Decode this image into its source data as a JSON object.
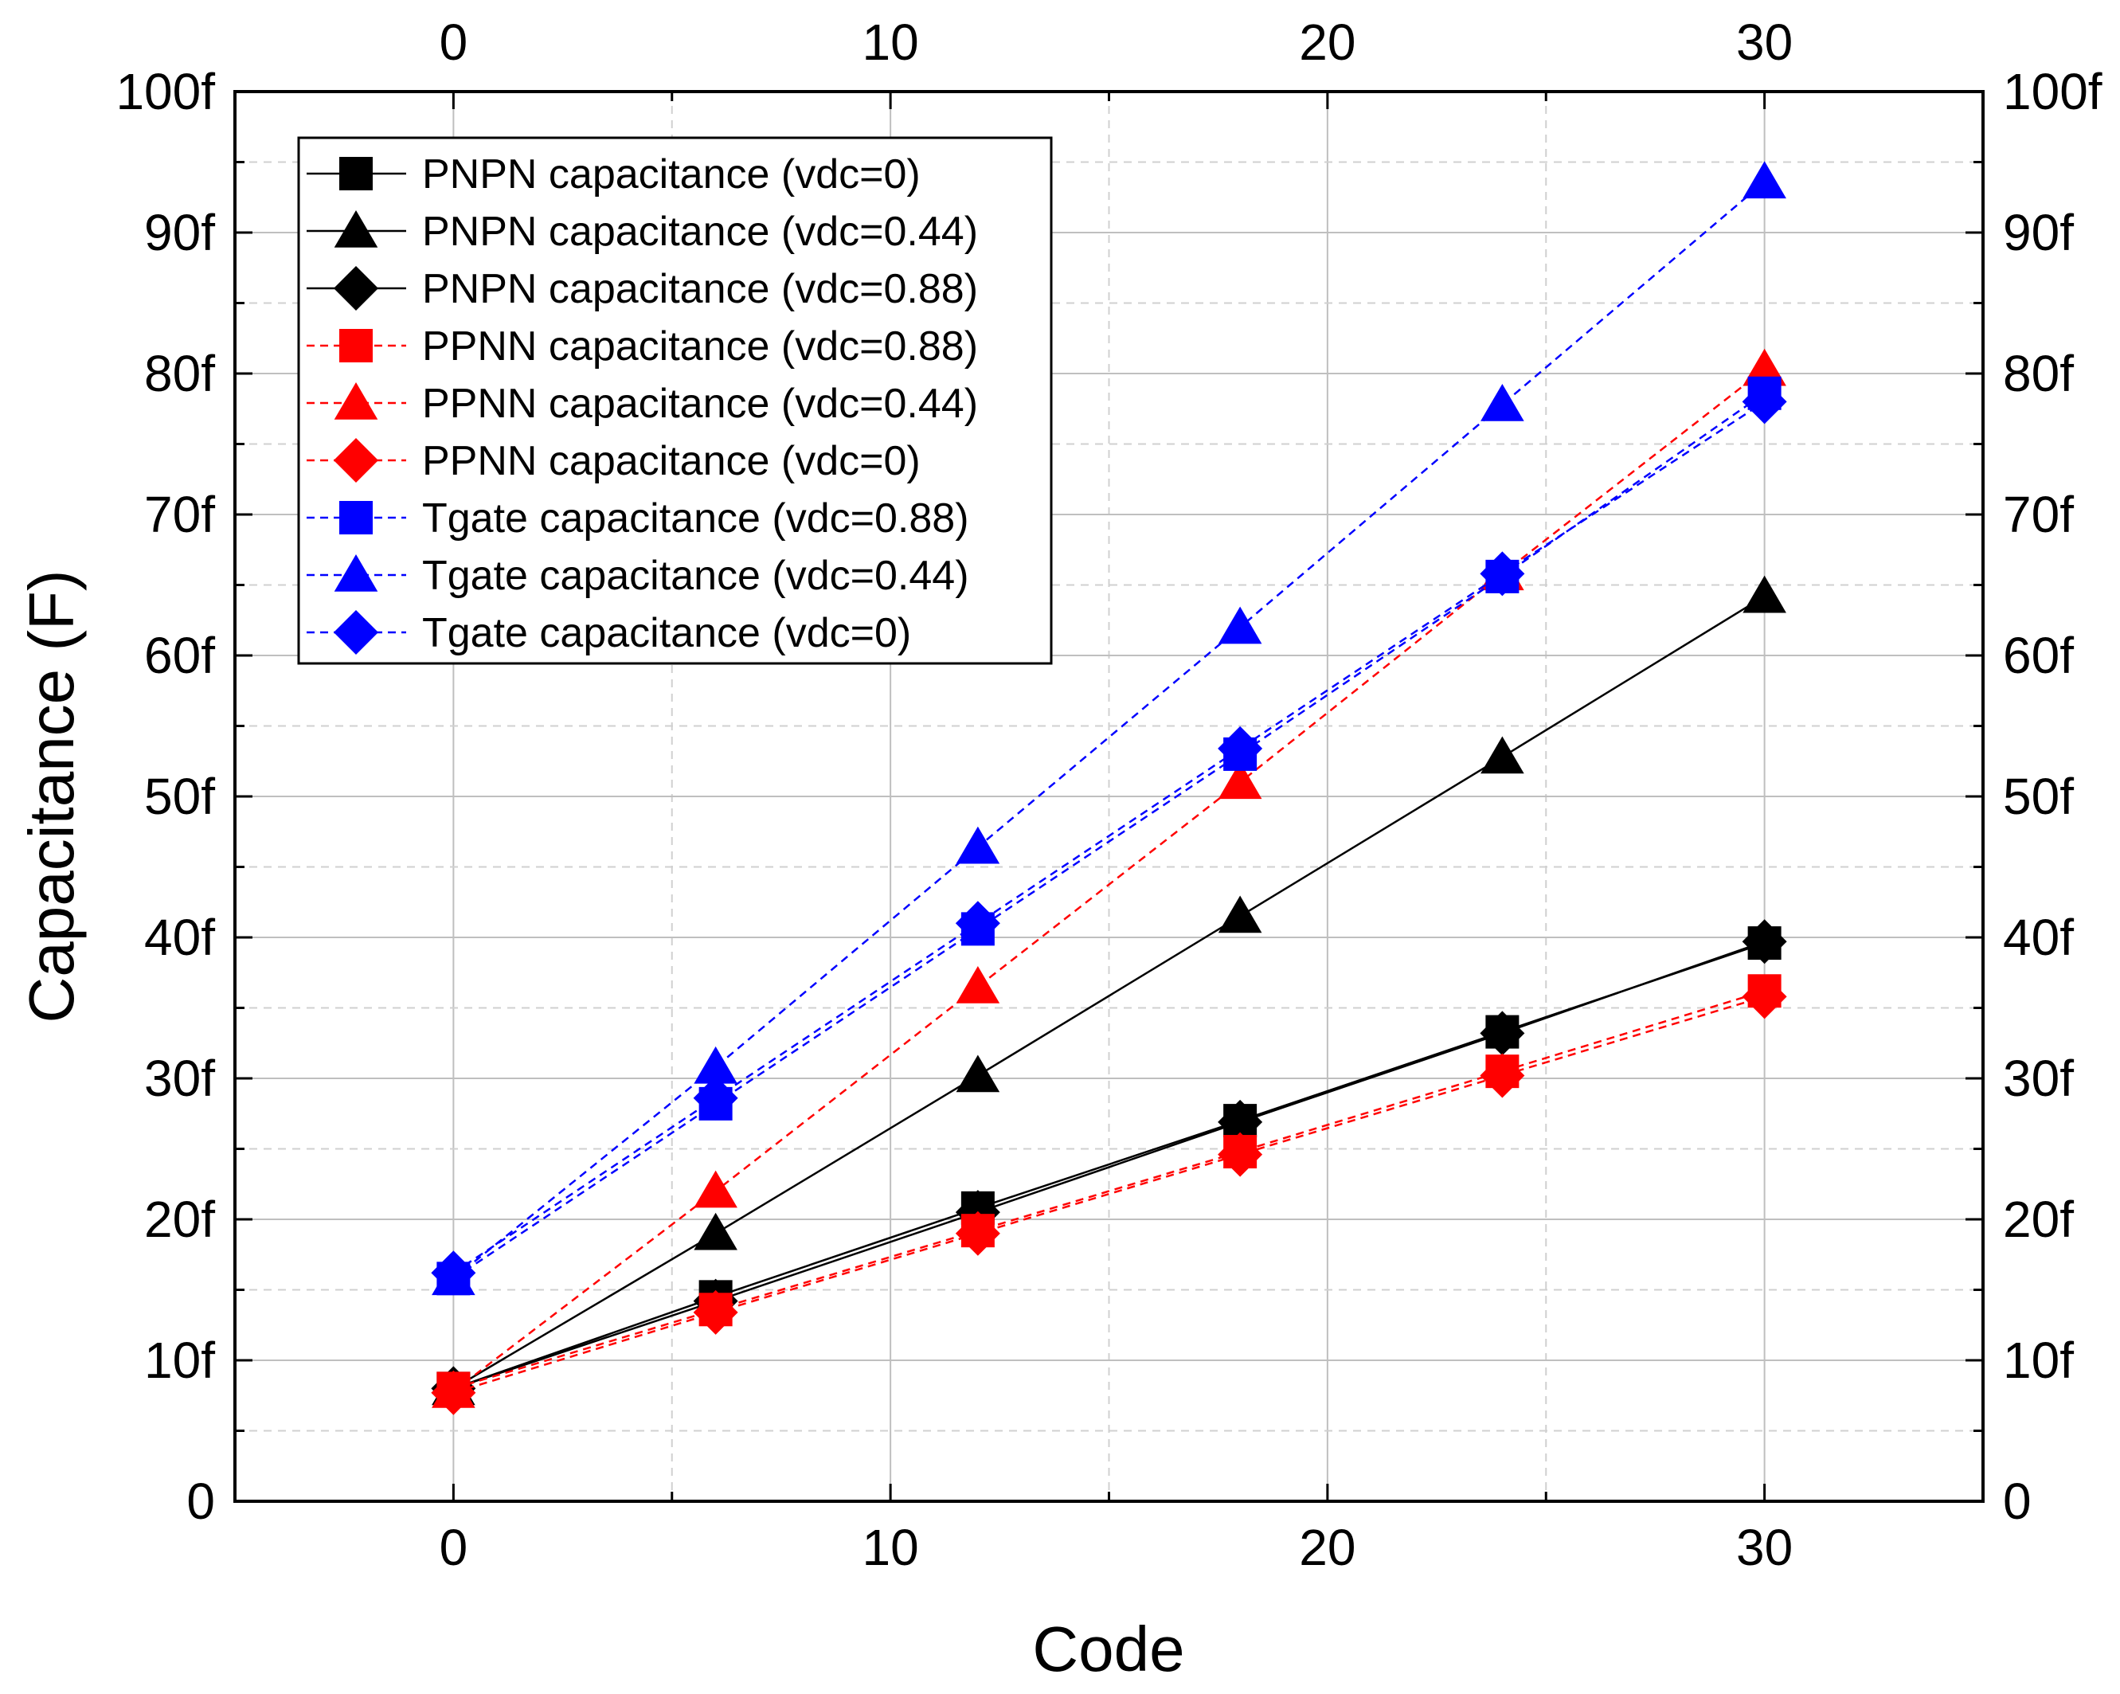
{
  "chart_data": {
    "type": "line",
    "title": "",
    "xlabel": "Code",
    "ylabel": "Capacitance (F)",
    "xlim": [
      -5,
      35
    ],
    "ylim": [
      0,
      100
    ],
    "x_ticks": [
      0,
      10,
      20,
      30
    ],
    "x_tick_labels": [
      "0",
      "10",
      "20",
      "30"
    ],
    "y_ticks": [
      0,
      10,
      20,
      30,
      40,
      50,
      60,
      70,
      80,
      90,
      100
    ],
    "y_tick_labels": [
      "0",
      "10f",
      "20f",
      "30f",
      "40f",
      "50f",
      "60f",
      "70f",
      "80f",
      "90f",
      "100f"
    ],
    "grid": true,
    "legend_position": "top-left",
    "x": [
      0,
      6,
      12,
      18,
      24,
      30
    ],
    "series": [
      {
        "name": "PNPN capacitance (vdc=0)",
        "color": "#000000",
        "marker": "square",
        "line": "solid",
        "values": [
          8.0,
          14.5,
          20.8,
          27.0,
          33.3,
          39.6
        ]
      },
      {
        "name": "PNPN capacitance (vdc=0.44)",
        "color": "#000000",
        "marker": "triangle",
        "line": "solid",
        "values": [
          8.0,
          19.0,
          30.2,
          41.5,
          52.8,
          64.2
        ]
      },
      {
        "name": "PNPN capacitance (vdc=0.88)",
        "color": "#000000",
        "marker": "diamond",
        "line": "solid",
        "values": [
          8.0,
          14.2,
          20.5,
          26.9,
          33.2,
          39.7
        ]
      },
      {
        "name": "PPNN capacitance (vdc=0.88)",
        "color": "#ff0000",
        "marker": "square",
        "line": "dashed",
        "values": [
          8.0,
          13.6,
          19.2,
          24.8,
          30.5,
          36.2
        ]
      },
      {
        "name": "PPNN capacitance (vdc=0.44)",
        "color": "#ff0000",
        "marker": "triangle",
        "line": "dashed",
        "values": [
          7.8,
          22.0,
          36.5,
          51.0,
          65.8,
          80.3
        ]
      },
      {
        "name": "PPNN capacitance (vdc=0)",
        "color": "#ff0000",
        "marker": "diamond",
        "line": "dashed",
        "values": [
          7.7,
          13.4,
          19.0,
          24.6,
          30.2,
          35.8
        ]
      },
      {
        "name": "Tgate capacitance (vdc=0.88)",
        "color": "#0000ff",
        "marker": "square",
        "line": "dashed",
        "values": [
          15.8,
          28.2,
          40.6,
          53.0,
          65.6,
          78.6
        ]
      },
      {
        "name": "Tgate capacitance (vdc=0.44)",
        "color": "#0000ff",
        "marker": "triangle",
        "line": "dashed",
        "values": [
          15.8,
          30.8,
          46.4,
          62.0,
          77.8,
          93.6
        ]
      },
      {
        "name": "Tgate capacitance (vdc=0)",
        "color": "#0000ff",
        "marker": "diamond",
        "line": "dashed",
        "values": [
          16.2,
          28.6,
          41.0,
          53.4,
          65.8,
          78.0
        ]
      }
    ]
  }
}
